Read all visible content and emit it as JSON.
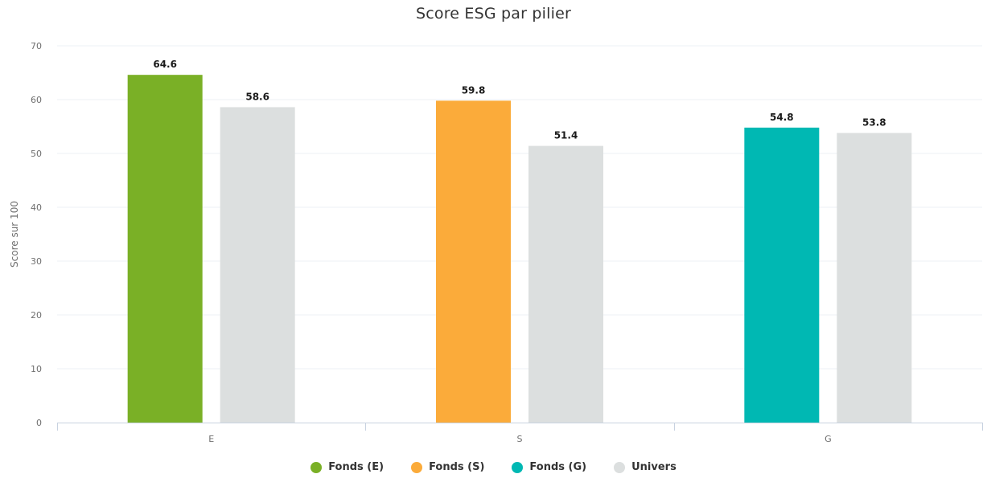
{
  "chart_data": {
    "type": "bar",
    "title": "Score ESG par pilier",
    "xlabel": "",
    "ylabel": "Score sur 100",
    "ylim": [
      0,
      70
    ],
    "yticks": [
      0,
      10,
      20,
      30,
      40,
      50,
      60,
      70
    ],
    "categories": [
      "E",
      "S",
      "G"
    ],
    "grid": true,
    "legend_position": "bottom",
    "bars": [
      {
        "category": "E",
        "series": "Fonds (E)",
        "value": 64.6,
        "label": "64.6",
        "color": "#7ab026"
      },
      {
        "category": "E",
        "series": "Univers",
        "value": 58.6,
        "label": "58.6",
        "color": "#dcdfdf"
      },
      {
        "category": "S",
        "series": "Fonds (S)",
        "value": 59.8,
        "label": "59.8",
        "color": "#fbab3a"
      },
      {
        "category": "S",
        "series": "Univers",
        "value": 51.4,
        "label": "51.4",
        "color": "#dcdfdf"
      },
      {
        "category": "G",
        "series": "Fonds (G)",
        "value": 54.8,
        "label": "54.8",
        "color": "#00b8b3"
      },
      {
        "category": "G",
        "series": "Univers",
        "value": 53.8,
        "label": "53.8",
        "color": "#dcdfdf"
      }
    ],
    "legend": [
      {
        "name": "Fonds (E)",
        "color": "#7ab026"
      },
      {
        "name": "Fonds (S)",
        "color": "#fbab3a"
      },
      {
        "name": "Fonds (G)",
        "color": "#00b8b3"
      },
      {
        "name": "Univers",
        "color": "#dcdfdf"
      }
    ]
  }
}
